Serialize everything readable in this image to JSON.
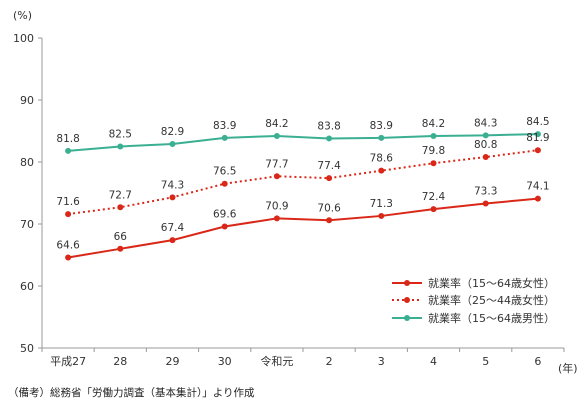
{
  "chart_data": {
    "type": "line",
    "categories": [
      "平成27",
      "28",
      "29",
      "30",
      "令和元",
      "2",
      "3",
      "4",
      "5",
      "6"
    ],
    "y_unit_label": "(%)",
    "x_unit_label": "(年)",
    "ylim": [
      50,
      100
    ],
    "yticks": [
      50,
      60,
      70,
      80,
      90,
      100
    ],
    "grid": false,
    "legend_position": "bottom-right",
    "series": [
      {
        "name": "就業率（15～64歳女性）",
        "values": [
          64.6,
          66,
          67.4,
          69.6,
          70.9,
          70.6,
          71.3,
          72.4,
          73.3,
          74.1
        ],
        "labels": [
          "64.6",
          "66",
          "67.4",
          "69.6",
          "70.9",
          "70.6",
          "71.3",
          "72.4",
          "73.3",
          "74.1"
        ],
        "color": "#d92818",
        "line_style": "solid"
      },
      {
        "name": "就業率（25～44歳女性）",
        "values": [
          71.6,
          72.7,
          74.3,
          76.5,
          77.7,
          77.4,
          78.6,
          79.8,
          80.8,
          81.9
        ],
        "labels": [
          "71.6",
          "72.7",
          "74.3",
          "76.5",
          "77.7",
          "77.4",
          "78.6",
          "79.8",
          "80.8",
          "81.9"
        ],
        "color": "#d92818",
        "line_style": "dotted"
      },
      {
        "name": "就業率（15～64歳男性）",
        "values": [
          81.8,
          82.5,
          82.9,
          83.9,
          84.2,
          83.8,
          83.9,
          84.2,
          84.3,
          84.5
        ],
        "labels": [
          "81.8",
          "82.5",
          "82.9",
          "83.9",
          "84.2",
          "83.8",
          "83.9",
          "84.2",
          "84.3",
          "84.5"
        ],
        "color": "#3aaf92",
        "line_style": "solid"
      }
    ]
  },
  "note": "（備考）総務省「労働力調査（基本集計）」より作成"
}
